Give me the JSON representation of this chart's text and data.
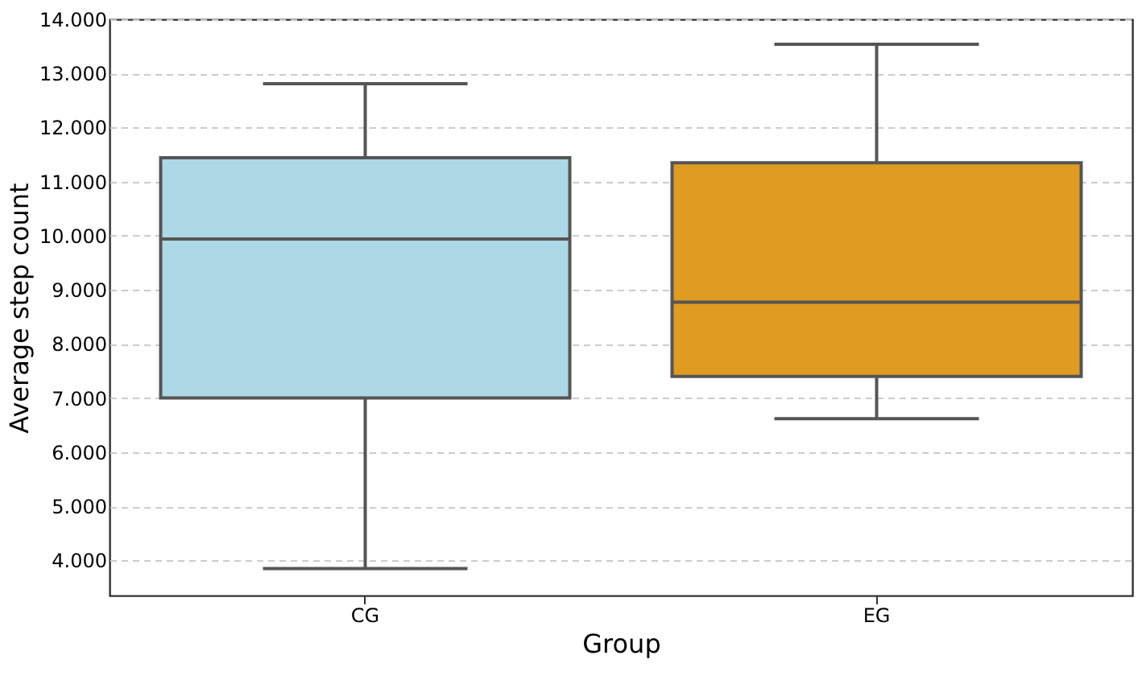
{
  "chart_data": {
    "type": "box",
    "xlabel": "Group",
    "ylabel": "Average step count",
    "categories": [
      "CG",
      "EG"
    ],
    "colors": [
      "#add8e6",
      "#e09b22"
    ],
    "boxes": [
      {
        "low": 3850,
        "q1": 7000,
        "median": 9940,
        "q3": 11440,
        "high": 12810
      },
      {
        "low": 6620,
        "q1": 7400,
        "median": 8770,
        "q3": 11350,
        "high": 13540
      }
    ],
    "ylim": [
      3350,
      14000
    ],
    "yticks": [
      {
        "value": 4000,
        "label": "4.000"
      },
      {
        "value": 5000,
        "label": "5.000"
      },
      {
        "value": 6000,
        "label": "6.000"
      },
      {
        "value": 7000,
        "label": "7.000"
      },
      {
        "value": 8000,
        "label": "8.000"
      },
      {
        "value": 9000,
        "label": "9.000"
      },
      {
        "value": 10000,
        "label": "10.000"
      },
      {
        "value": 11000,
        "label": "11.000"
      },
      {
        "value": 12000,
        "label": "12.000"
      },
      {
        "value": 13000,
        "label": "13.000"
      },
      {
        "value": 14000,
        "label": "14.000"
      }
    ],
    "grid": "y"
  }
}
